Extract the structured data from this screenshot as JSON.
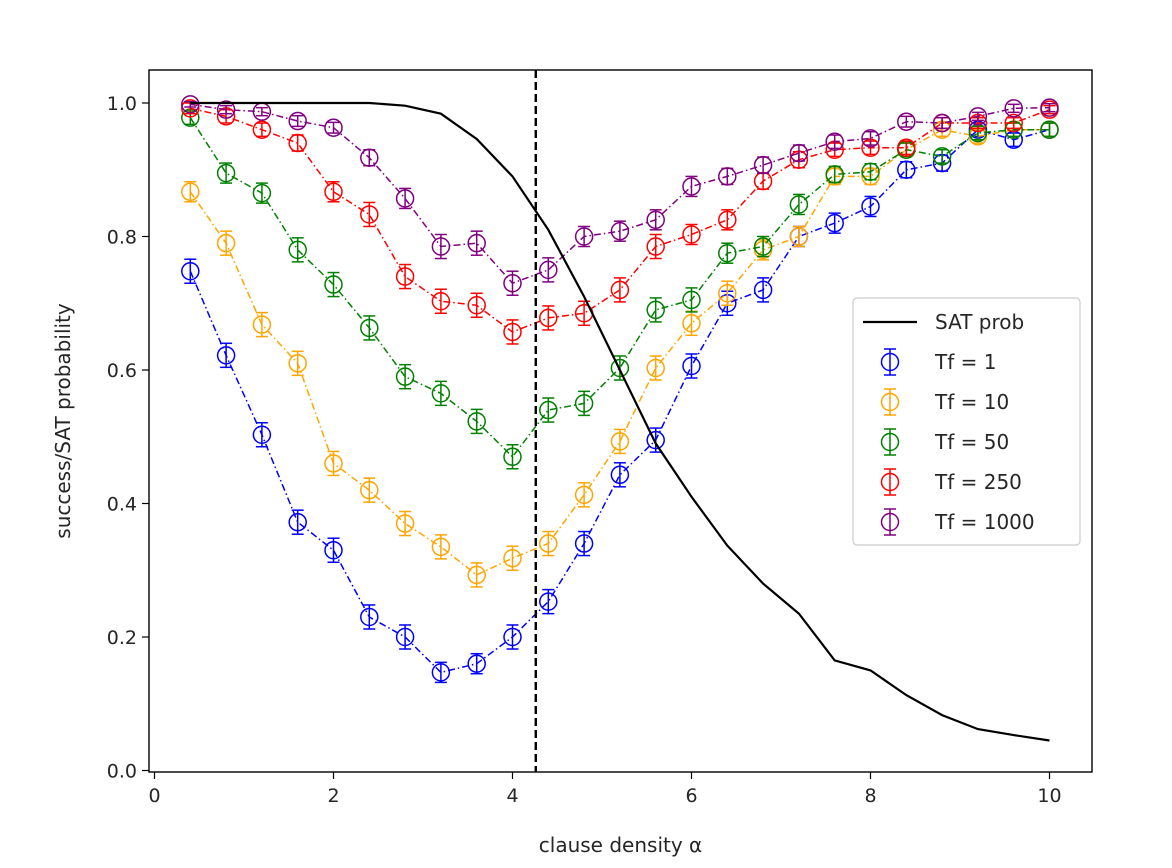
{
  "chart_data": {
    "type": "line",
    "title": "",
    "xlabel": "clause density α",
    "ylabel": "success/SAT probability",
    "xlim": [
      -0.05,
      10.5
    ],
    "ylim": [
      0.0,
      1.0
    ],
    "xticks": [
      0,
      2,
      4,
      6,
      8,
      10
    ],
    "yticks": [
      0.0,
      0.2,
      0.4,
      0.6,
      0.8,
      1.0
    ],
    "xtick_labels": [
      "0",
      "2",
      "4",
      "6",
      "8",
      "10"
    ],
    "ytick_labels": [
      "0.0",
      "0.2",
      "0.4",
      "0.6",
      "0.8",
      "1.0"
    ],
    "threshold_line": {
      "x": 4.26,
      "style": "dashed",
      "color": "#000000"
    },
    "legend": {
      "placement": "center-right"
    },
    "sat_curve": {
      "name": "SAT prob",
      "color": "#000000",
      "x": [
        0.4,
        0.8,
        1.2,
        1.6,
        2.0,
        2.4,
        2.8,
        3.2,
        3.6,
        4.0,
        4.4,
        4.8,
        5.2,
        5.6,
        6.0,
        6.4,
        6.8,
        7.2,
        7.6,
        8.0,
        8.4,
        8.8,
        9.2,
        9.6,
        10.0
      ],
      "values": [
        1.0,
        1.0,
        1.0,
        1.0,
        1.0,
        1.0,
        0.996,
        0.984,
        0.946,
        0.89,
        0.81,
        0.71,
        0.6,
        0.49,
        0.41,
        0.337,
        0.28,
        0.235,
        0.165,
        0.15,
        0.113,
        0.083,
        0.062,
        0.053,
        0.045
      ]
    },
    "x": [
      0.4,
      0.8,
      1.2,
      1.6,
      2.0,
      2.4,
      2.8,
      3.2,
      3.6,
      4.0,
      4.4,
      4.8,
      5.2,
      5.6,
      6.0,
      6.4,
      6.8,
      7.2,
      7.6,
      8.0,
      8.4,
      8.8,
      9.2,
      9.6,
      10.0
    ],
    "series": [
      {
        "name": "Tf = 1",
        "color": "#0000ff",
        "values": [
          0.748,
          0.622,
          0.503,
          0.372,
          0.33,
          0.23,
          0.2,
          0.147,
          0.16,
          0.2,
          0.253,
          0.34,
          0.443,
          0.495,
          0.606,
          0.7,
          0.72,
          0.8,
          0.82,
          0.845,
          0.9,
          0.91,
          0.96,
          0.945,
          0.96
        ],
        "err": [
          0.018,
          0.018,
          0.018,
          0.018,
          0.018,
          0.018,
          0.018,
          0.015,
          0.015,
          0.018,
          0.018,
          0.018,
          0.018,
          0.018,
          0.018,
          0.018,
          0.018,
          0.015,
          0.015,
          0.015,
          0.012,
          0.012,
          0.01,
          0.01,
          0.01
        ]
      },
      {
        "name": "Tf = 10",
        "color": "#ffa500",
        "values": [
          0.867,
          0.79,
          0.668,
          0.61,
          0.46,
          0.42,
          0.37,
          0.335,
          0.293,
          0.318,
          0.34,
          0.413,
          0.493,
          0.603,
          0.67,
          0.715,
          0.78,
          0.8,
          0.89,
          0.89,
          0.93,
          0.96,
          0.95,
          0.96,
          0.96
        ],
        "err": [
          0.015,
          0.018,
          0.018,
          0.018,
          0.018,
          0.018,
          0.018,
          0.018,
          0.018,
          0.018,
          0.018,
          0.018,
          0.018,
          0.018,
          0.018,
          0.018,
          0.015,
          0.015,
          0.012,
          0.012,
          0.01,
          0.01,
          0.01,
          0.01,
          0.01
        ]
      },
      {
        "name": "Tf = 50",
        "color": "#008000",
        "values": [
          0.978,
          0.895,
          0.865,
          0.78,
          0.728,
          0.663,
          0.59,
          0.565,
          0.523,
          0.47,
          0.54,
          0.55,
          0.603,
          0.69,
          0.705,
          0.775,
          0.785,
          0.848,
          0.893,
          0.897,
          0.93,
          0.92,
          0.955,
          0.96,
          0.96
        ],
        "err": [
          0.01,
          0.015,
          0.015,
          0.018,
          0.018,
          0.018,
          0.018,
          0.018,
          0.018,
          0.018,
          0.018,
          0.018,
          0.018,
          0.018,
          0.018,
          0.015,
          0.015,
          0.015,
          0.012,
          0.012,
          0.01,
          0.01,
          0.01,
          0.01,
          0.01
        ]
      },
      {
        "name": "Tf = 250",
        "color": "#ff0000",
        "values": [
          0.992,
          0.98,
          0.96,
          0.94,
          0.867,
          0.833,
          0.74,
          0.703,
          0.697,
          0.657,
          0.678,
          0.685,
          0.72,
          0.785,
          0.803,
          0.825,
          0.883,
          0.915,
          0.93,
          0.933,
          0.933,
          0.97,
          0.97,
          0.97,
          0.99
        ],
        "err": [
          0.008,
          0.01,
          0.01,
          0.012,
          0.015,
          0.018,
          0.018,
          0.018,
          0.018,
          0.018,
          0.018,
          0.018,
          0.018,
          0.018,
          0.015,
          0.015,
          0.012,
          0.012,
          0.01,
          0.01,
          0.01,
          0.008,
          0.008,
          0.008,
          0.006
        ]
      },
      {
        "name": "Tf = 1000",
        "color": "#800080",
        "values": [
          0.998,
          0.99,
          0.987,
          0.973,
          0.963,
          0.918,
          0.857,
          0.785,
          0.79,
          0.73,
          0.75,
          0.8,
          0.808,
          0.825,
          0.875,
          0.89,
          0.907,
          0.925,
          0.942,
          0.947,
          0.972,
          0.97,
          0.98,
          0.992,
          0.993
        ],
        "err": [
          0.004,
          0.006,
          0.006,
          0.008,
          0.008,
          0.012,
          0.015,
          0.018,
          0.018,
          0.018,
          0.018,
          0.015,
          0.015,
          0.015,
          0.015,
          0.012,
          0.012,
          0.012,
          0.01,
          0.01,
          0.008,
          0.008,
          0.006,
          0.006,
          0.006
        ]
      }
    ]
  }
}
